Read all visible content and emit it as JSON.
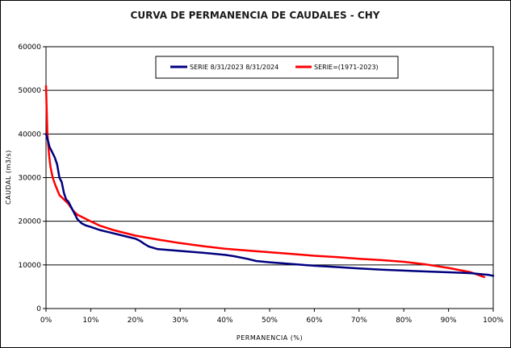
{
  "chart_data": {
    "type": "line",
    "title": "CURVA DE PERMANENCIA DE CAUDALES - CHY",
    "xlabel": "PERMANENCIA (%)",
    "ylabel": "CAUDAL (m3/s)",
    "xlim": [
      0,
      100
    ],
    "ylim": [
      0,
      60000
    ],
    "x_ticks": [
      0,
      10,
      20,
      30,
      40,
      50,
      60,
      70,
      80,
      90,
      100
    ],
    "x_tick_labels": [
      "0%",
      "10%",
      "20%",
      "30%",
      "40%",
      "50%",
      "60%",
      "70%",
      "80%",
      "90%",
      "100%"
    ],
    "y_ticks": [
      0,
      10000,
      20000,
      30000,
      40000,
      50000,
      60000
    ],
    "y_tick_labels": [
      "0",
      "10000",
      "20000",
      "30000",
      "40000",
      "50000",
      "60000"
    ],
    "grid": "horizontal",
    "legend_position": "top",
    "series": [
      {
        "name": "SERIE 8/31/2023 8/31/2024",
        "color": "#00007f",
        "x": [
          0,
          0.3,
          0.8,
          1.3,
          2.0,
          2.5,
          3.0,
          3.5,
          4.0,
          4.5,
          5.0,
          6.0,
          7.0,
          7.5,
          8.0,
          9.0,
          10,
          12,
          14,
          16,
          18,
          20,
          21,
          22,
          23,
          25,
          30,
          35,
          40,
          42,
          45,
          47,
          50,
          55,
          60,
          65,
          70,
          75,
          80,
          85,
          90,
          95,
          99,
          100
        ],
        "y": [
          40000,
          39000,
          37000,
          36000,
          34500,
          33000,
          30000,
          29000,
          26500,
          25000,
          24500,
          22500,
          20500,
          20000,
          19500,
          19000,
          18700,
          18000,
          17500,
          17000,
          16500,
          16000,
          15500,
          14800,
          14200,
          13600,
          13200,
          12800,
          12300,
          12000,
          11400,
          10900,
          10600,
          10200,
          9800,
          9500,
          9200,
          8900,
          8700,
          8500,
          8300,
          8100,
          7700,
          7500
        ]
      },
      {
        "name": "SERIE=(1971-2023)",
        "color": "#ff0000",
        "x": [
          0,
          0.3,
          0.7,
          1.0,
          1.5,
          2.0,
          3.0,
          4.0,
          5.0,
          6.0,
          7.0,
          8.0,
          10,
          12,
          15,
          20,
          25,
          30,
          35,
          40,
          45,
          50,
          55,
          60,
          65,
          70,
          75,
          80,
          85,
          90,
          95,
          98
        ],
        "y": [
          51000,
          40000,
          35000,
          32500,
          30000,
          28500,
          26000,
          25000,
          24000,
          22500,
          21500,
          21000,
          20000,
          19000,
          18000,
          16700,
          15800,
          15000,
          14300,
          13700,
          13300,
          12900,
          12500,
          12100,
          11800,
          11400,
          11100,
          10700,
          10100,
          9300,
          8300,
          7200
        ]
      }
    ]
  }
}
